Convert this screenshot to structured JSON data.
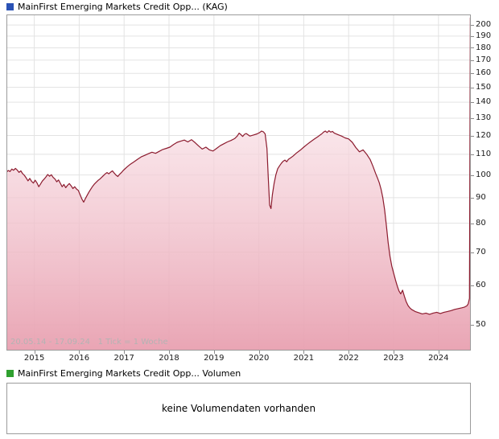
{
  "price_panel": {
    "title": "MainFirst Emerging Markets Credit Opp... (KAG)",
    "legend_color": "#2a52b5",
    "period_text": "20.05.14 - 17.09.24   1 Tick = 1 Woche"
  },
  "volume_panel": {
    "title": "MainFirst Emerging Markets Credit Opp... Volumen",
    "legend_color": "#2fa02f",
    "empty_message": "keine Volumendaten vorhanden"
  },
  "chart_data": {
    "type": "area",
    "title": "MainFirst Emerging Markets Credit Opp... (KAG)",
    "x_unit": "decimal_year",
    "x_range": [
      2014.38,
      2024.72
    ],
    "x_ticks": [
      2015,
      2016,
      2017,
      2018,
      2019,
      2020,
      2021,
      2022,
      2023,
      2024
    ],
    "y_scale": "log",
    "y_range": [
      44.4,
      210
    ],
    "y_ticks": [
      50,
      60,
      70,
      80,
      90,
      100,
      110,
      120,
      130,
      140,
      150,
      160,
      170,
      180,
      190,
      200
    ],
    "period_from": "20.05.14",
    "period_to": "17.09.24",
    "tick_interval": "1 Woche",
    "grid": true,
    "legend_position": "top-left",
    "line_color": "#8c1b2e",
    "fill_top": "rgba(255,247,249,0.55)",
    "fill_bottom": "rgba(232,160,176,0.95)",
    "grid_color": "#e3e3e3",
    "border_color": "#9b9b9b",
    "series": [
      {
        "name": "MainFirst Emerging Markets Credit Opp... (KAG)",
        "points": [
          [
            2014.38,
            101.2
          ],
          [
            2014.42,
            102.1
          ],
          [
            2014.46,
            101.6
          ],
          [
            2014.5,
            102.8
          ],
          [
            2014.54,
            102.2
          ],
          [
            2014.58,
            103.1
          ],
          [
            2014.62,
            102.3
          ],
          [
            2014.66,
            101.2
          ],
          [
            2014.7,
            101.9
          ],
          [
            2014.74,
            100.6
          ],
          [
            2014.78,
            99.8
          ],
          [
            2014.82,
            98.6
          ],
          [
            2014.86,
            97.3
          ],
          [
            2014.9,
            98.4
          ],
          [
            2014.94,
            97.1
          ],
          [
            2014.98,
            96.3
          ],
          [
            2015.02,
            97.6
          ],
          [
            2015.06,
            96.4
          ],
          [
            2015.1,
            94.7
          ],
          [
            2015.14,
            95.9
          ],
          [
            2015.18,
            97.2
          ],
          [
            2015.22,
            98.1
          ],
          [
            2015.26,
            99.1
          ],
          [
            2015.3,
            100.2
          ],
          [
            2015.34,
            99.4
          ],
          [
            2015.38,
            100.1
          ],
          [
            2015.42,
            98.9
          ],
          [
            2015.46,
            98.1
          ],
          [
            2015.5,
            96.9
          ],
          [
            2015.54,
            97.7
          ],
          [
            2015.58,
            96.2
          ],
          [
            2015.62,
            94.7
          ],
          [
            2015.66,
            95.7
          ],
          [
            2015.7,
            94.3
          ],
          [
            2015.74,
            95.3
          ],
          [
            2015.78,
            96.1
          ],
          [
            2015.82,
            95.1
          ],
          [
            2015.86,
            93.9
          ],
          [
            2015.9,
            94.7
          ],
          [
            2015.94,
            93.7
          ],
          [
            2015.98,
            93.1
          ],
          [
            2016.02,
            91.3
          ],
          [
            2016.06,
            89.5
          ],
          [
            2016.1,
            88.2
          ],
          [
            2016.14,
            89.7
          ],
          [
            2016.18,
            91.1
          ],
          [
            2016.22,
            92.5
          ],
          [
            2016.26,
            93.7
          ],
          [
            2016.3,
            94.9
          ],
          [
            2016.34,
            95.9
          ],
          [
            2016.38,
            96.7
          ],
          [
            2016.42,
            97.5
          ],
          [
            2016.46,
            98.1
          ],
          [
            2016.5,
            98.9
          ],
          [
            2016.54,
            99.7
          ],
          [
            2016.58,
            100.5
          ],
          [
            2016.62,
            101.1
          ],
          [
            2016.66,
            100.5
          ],
          [
            2016.7,
            101.3
          ],
          [
            2016.74,
            101.9
          ],
          [
            2016.78,
            100.9
          ],
          [
            2016.82,
            99.9
          ],
          [
            2016.86,
            99.3
          ],
          [
            2016.9,
            100.3
          ],
          [
            2016.94,
            101.1
          ],
          [
            2016.98,
            102.1
          ],
          [
            2017.06,
            103.7
          ],
          [
            2017.14,
            105.1
          ],
          [
            2017.22,
            106.3
          ],
          [
            2017.3,
            107.5
          ],
          [
            2017.38,
            108.7
          ],
          [
            2017.46,
            109.5
          ],
          [
            2017.54,
            110.3
          ],
          [
            2017.62,
            111.1
          ],
          [
            2017.7,
            110.5
          ],
          [
            2017.78,
            111.5
          ],
          [
            2017.86,
            112.5
          ],
          [
            2017.94,
            113.1
          ],
          [
            2018.02,
            113.7
          ],
          [
            2018.1,
            115.1
          ],
          [
            2018.18,
            116.3
          ],
          [
            2018.26,
            116.9
          ],
          [
            2018.34,
            117.5
          ],
          [
            2018.42,
            116.5
          ],
          [
            2018.5,
            117.7
          ],
          [
            2018.58,
            116.1
          ],
          [
            2018.66,
            114.3
          ],
          [
            2018.74,
            112.7
          ],
          [
            2018.82,
            113.7
          ],
          [
            2018.9,
            112.3
          ],
          [
            2018.98,
            111.7
          ],
          [
            2019.06,
            113.1
          ],
          [
            2019.14,
            114.5
          ],
          [
            2019.22,
            115.5
          ],
          [
            2019.3,
            116.5
          ],
          [
            2019.38,
            117.3
          ],
          [
            2019.46,
            118.3
          ],
          [
            2019.52,
            119.7
          ],
          [
            2019.56,
            121.3
          ],
          [
            2019.6,
            120.5
          ],
          [
            2019.64,
            119.5
          ],
          [
            2019.68,
            120.7
          ],
          [
            2019.72,
            121.1
          ],
          [
            2019.8,
            119.7
          ],
          [
            2019.88,
            120.3
          ],
          [
            2019.96,
            120.9
          ],
          [
            2020.02,
            121.7
          ],
          [
            2020.06,
            122.5
          ],
          [
            2020.1,
            122.1
          ],
          [
            2020.14,
            120.9
          ],
          [
            2020.18,
            113.0
          ],
          [
            2020.21,
            99.0
          ],
          [
            2020.24,
            87.0
          ],
          [
            2020.27,
            85.6
          ],
          [
            2020.3,
            91.2
          ],
          [
            2020.34,
            96.2
          ],
          [
            2020.38,
            100.1
          ],
          [
            2020.42,
            102.9
          ],
          [
            2020.46,
            104.3
          ],
          [
            2020.5,
            105.5
          ],
          [
            2020.54,
            106.5
          ],
          [
            2020.58,
            107.1
          ],
          [
            2020.62,
            106.3
          ],
          [
            2020.66,
            107.5
          ],
          [
            2020.7,
            108.1
          ],
          [
            2020.76,
            109.1
          ],
          [
            2020.84,
            110.7
          ],
          [
            2020.92,
            112.1
          ],
          [
            2021.0,
            113.7
          ],
          [
            2021.08,
            115.3
          ],
          [
            2021.16,
            116.7
          ],
          [
            2021.24,
            118.1
          ],
          [
            2021.32,
            119.5
          ],
          [
            2021.4,
            120.9
          ],
          [
            2021.44,
            121.9
          ],
          [
            2021.48,
            122.5
          ],
          [
            2021.52,
            121.7
          ],
          [
            2021.56,
            122.7
          ],
          [
            2021.6,
            121.9
          ],
          [
            2021.64,
            122.3
          ],
          [
            2021.68,
            121.3
          ],
          [
            2021.76,
            120.5
          ],
          [
            2021.84,
            119.7
          ],
          [
            2021.92,
            118.7
          ],
          [
            2022.0,
            118.1
          ],
          [
            2022.08,
            116.3
          ],
          [
            2022.16,
            113.5
          ],
          [
            2022.24,
            111.3
          ],
          [
            2022.32,
            112.3
          ],
          [
            2022.4,
            110.1
          ],
          [
            2022.48,
            107.3
          ],
          [
            2022.54,
            104.1
          ],
          [
            2022.6,
            100.7
          ],
          [
            2022.64,
            98.7
          ],
          [
            2022.68,
            96.5
          ],
          [
            2022.72,
            93.7
          ],
          [
            2022.76,
            90.1
          ],
          [
            2022.8,
            85.1
          ],
          [
            2022.84,
            79.1
          ],
          [
            2022.88,
            73.1
          ],
          [
            2022.92,
            68.6
          ],
          [
            2022.96,
            65.6
          ],
          [
            2023.0,
            63.6
          ],
          [
            2023.04,
            61.6
          ],
          [
            2023.08,
            59.9
          ],
          [
            2023.12,
            58.5
          ],
          [
            2023.16,
            57.7
          ],
          [
            2023.2,
            58.7
          ],
          [
            2023.24,
            57.1
          ],
          [
            2023.28,
            55.7
          ],
          [
            2023.32,
            54.7
          ],
          [
            2023.36,
            54.1
          ],
          [
            2023.4,
            53.7
          ],
          [
            2023.48,
            53.2
          ],
          [
            2023.56,
            52.9
          ],
          [
            2023.64,
            52.6
          ],
          [
            2023.72,
            52.8
          ],
          [
            2023.8,
            52.5
          ],
          [
            2023.88,
            52.8
          ],
          [
            2023.96,
            53.0
          ],
          [
            2024.04,
            52.7
          ],
          [
            2024.12,
            53.0
          ],
          [
            2024.2,
            53.2
          ],
          [
            2024.28,
            53.4
          ],
          [
            2024.36,
            53.7
          ],
          [
            2024.44,
            53.9
          ],
          [
            2024.52,
            54.1
          ],
          [
            2024.58,
            54.3
          ],
          [
            2024.63,
            54.6
          ],
          [
            2024.66,
            55.1
          ],
          [
            2024.69,
            56.5
          ],
          [
            2024.71,
            207.0
          ]
        ]
      }
    ]
  }
}
